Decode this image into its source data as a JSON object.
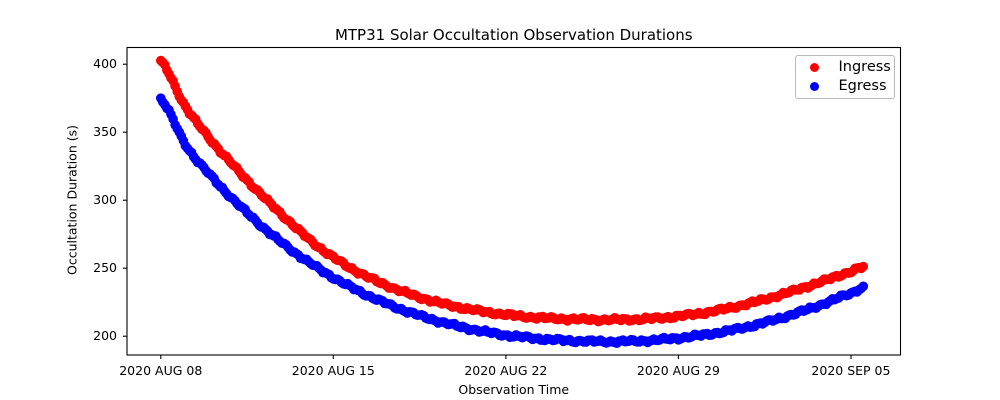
{
  "title": "MTP31 Solar Occultation Observation Durations",
  "axes": {
    "xlabel": "Observation Time",
    "ylabel": "Occultation Duration (s)"
  },
  "x_ticks": [
    "2020 AUG 08",
    "2020 AUG 15",
    "2020 AUG 22",
    "2020 AUG 29",
    "2020 SEP 05"
  ],
  "y_ticks": [
    "400",
    "350",
    "300",
    "250",
    "200"
  ],
  "legend": {
    "items": [
      {
        "label": "Ingress",
        "color": "#ff0000"
      },
      {
        "label": "Egress",
        "color": "#0000ff"
      }
    ]
  },
  "chart_data": {
    "type": "scatter",
    "title": "MTP31 Solar Occultation Observation Durations",
    "xlabel": "Observation Time",
    "ylabel": "Occultation Duration (s)",
    "grid": false,
    "legend_position": "upper right",
    "x_axis": {
      "unit": "days since 2020 AUG 08",
      "tick_days": [
        0,
        7,
        14,
        21,
        28
      ],
      "tick_labels": [
        "2020 AUG 08",
        "2020 AUG 15",
        "2020 AUG 22",
        "2020 AUG 29",
        "2020 SEP 05"
      ],
      "xlim_days": [
        -1.37,
        30.01
      ]
    },
    "y_axis": {
      "ticks": [
        200,
        250,
        300,
        350,
        400
      ],
      "ylim": [
        186.2,
        412.3
      ]
    },
    "marker": {
      "shape": "circle",
      "radius_px": 4.8
    },
    "sampling": {
      "points_per_day": 12,
      "t_start_days": 0,
      "t_end_days": 28.55,
      "scatter_wiggle_units": [
        [
          0.75,
          1.23
        ],
        [
          0.45,
          0.37
        ],
        [
          0.3,
          2.9
        ]
      ]
    },
    "series": [
      {
        "name": "Ingress",
        "color": "#ff0000",
        "phase": 0,
        "control_points_day_value": [
          [
            0,
            402
          ],
          [
            1,
            369
          ],
          [
            2,
            345
          ],
          [
            3,
            324.5
          ],
          [
            4,
            305.5
          ],
          [
            5,
            288
          ],
          [
            6,
            271.5
          ],
          [
            7,
            258
          ],
          [
            8,
            247.2
          ],
          [
            9,
            238.6
          ],
          [
            10,
            231.6
          ],
          [
            11,
            226
          ],
          [
            12,
            221.7
          ],
          [
            13,
            218.4
          ],
          [
            14,
            215.9
          ],
          [
            15,
            214.1
          ],
          [
            16,
            213
          ],
          [
            17,
            212.4
          ],
          [
            18,
            212.1
          ],
          [
            19,
            212.3
          ],
          [
            20,
            213.1
          ],
          [
            21,
            214.7
          ],
          [
            22,
            217.1
          ],
          [
            23,
            220.5
          ],
          [
            24,
            224.7
          ],
          [
            25,
            229.7
          ],
          [
            26,
            235.3
          ],
          [
            27,
            241.3
          ],
          [
            28,
            247.5
          ],
          [
            28.55,
            251
          ]
        ]
      },
      {
        "name": "Egress",
        "color": "#0000ff",
        "phase": 2.1,
        "control_points_day_value": [
          [
            0,
            374.5
          ],
          [
            1,
            341
          ],
          [
            2,
            318.5
          ],
          [
            3,
            299.5
          ],
          [
            4,
            282.5
          ],
          [
            5,
            267.5
          ],
          [
            6,
            254.5
          ],
          [
            7,
            243.2
          ],
          [
            8,
            233.5
          ],
          [
            9,
            225.2
          ],
          [
            10,
            218.2
          ],
          [
            11,
            212.4
          ],
          [
            12,
            207.6
          ],
          [
            13,
            203.8
          ],
          [
            14,
            200.8
          ],
          [
            15,
            198.8
          ],
          [
            16,
            197.3
          ],
          [
            17,
            196.5
          ],
          [
            18,
            196.1
          ],
          [
            19,
            196.3
          ],
          [
            20,
            197.1
          ],
          [
            21,
            198.7
          ],
          [
            22,
            200.9
          ],
          [
            23,
            203.9
          ],
          [
            24,
            207.8
          ],
          [
            25,
            212.6
          ],
          [
            26,
            218.2
          ],
          [
            27,
            224.6
          ],
          [
            28,
            231.6
          ],
          [
            28.55,
            236
          ]
        ]
      }
    ]
  }
}
